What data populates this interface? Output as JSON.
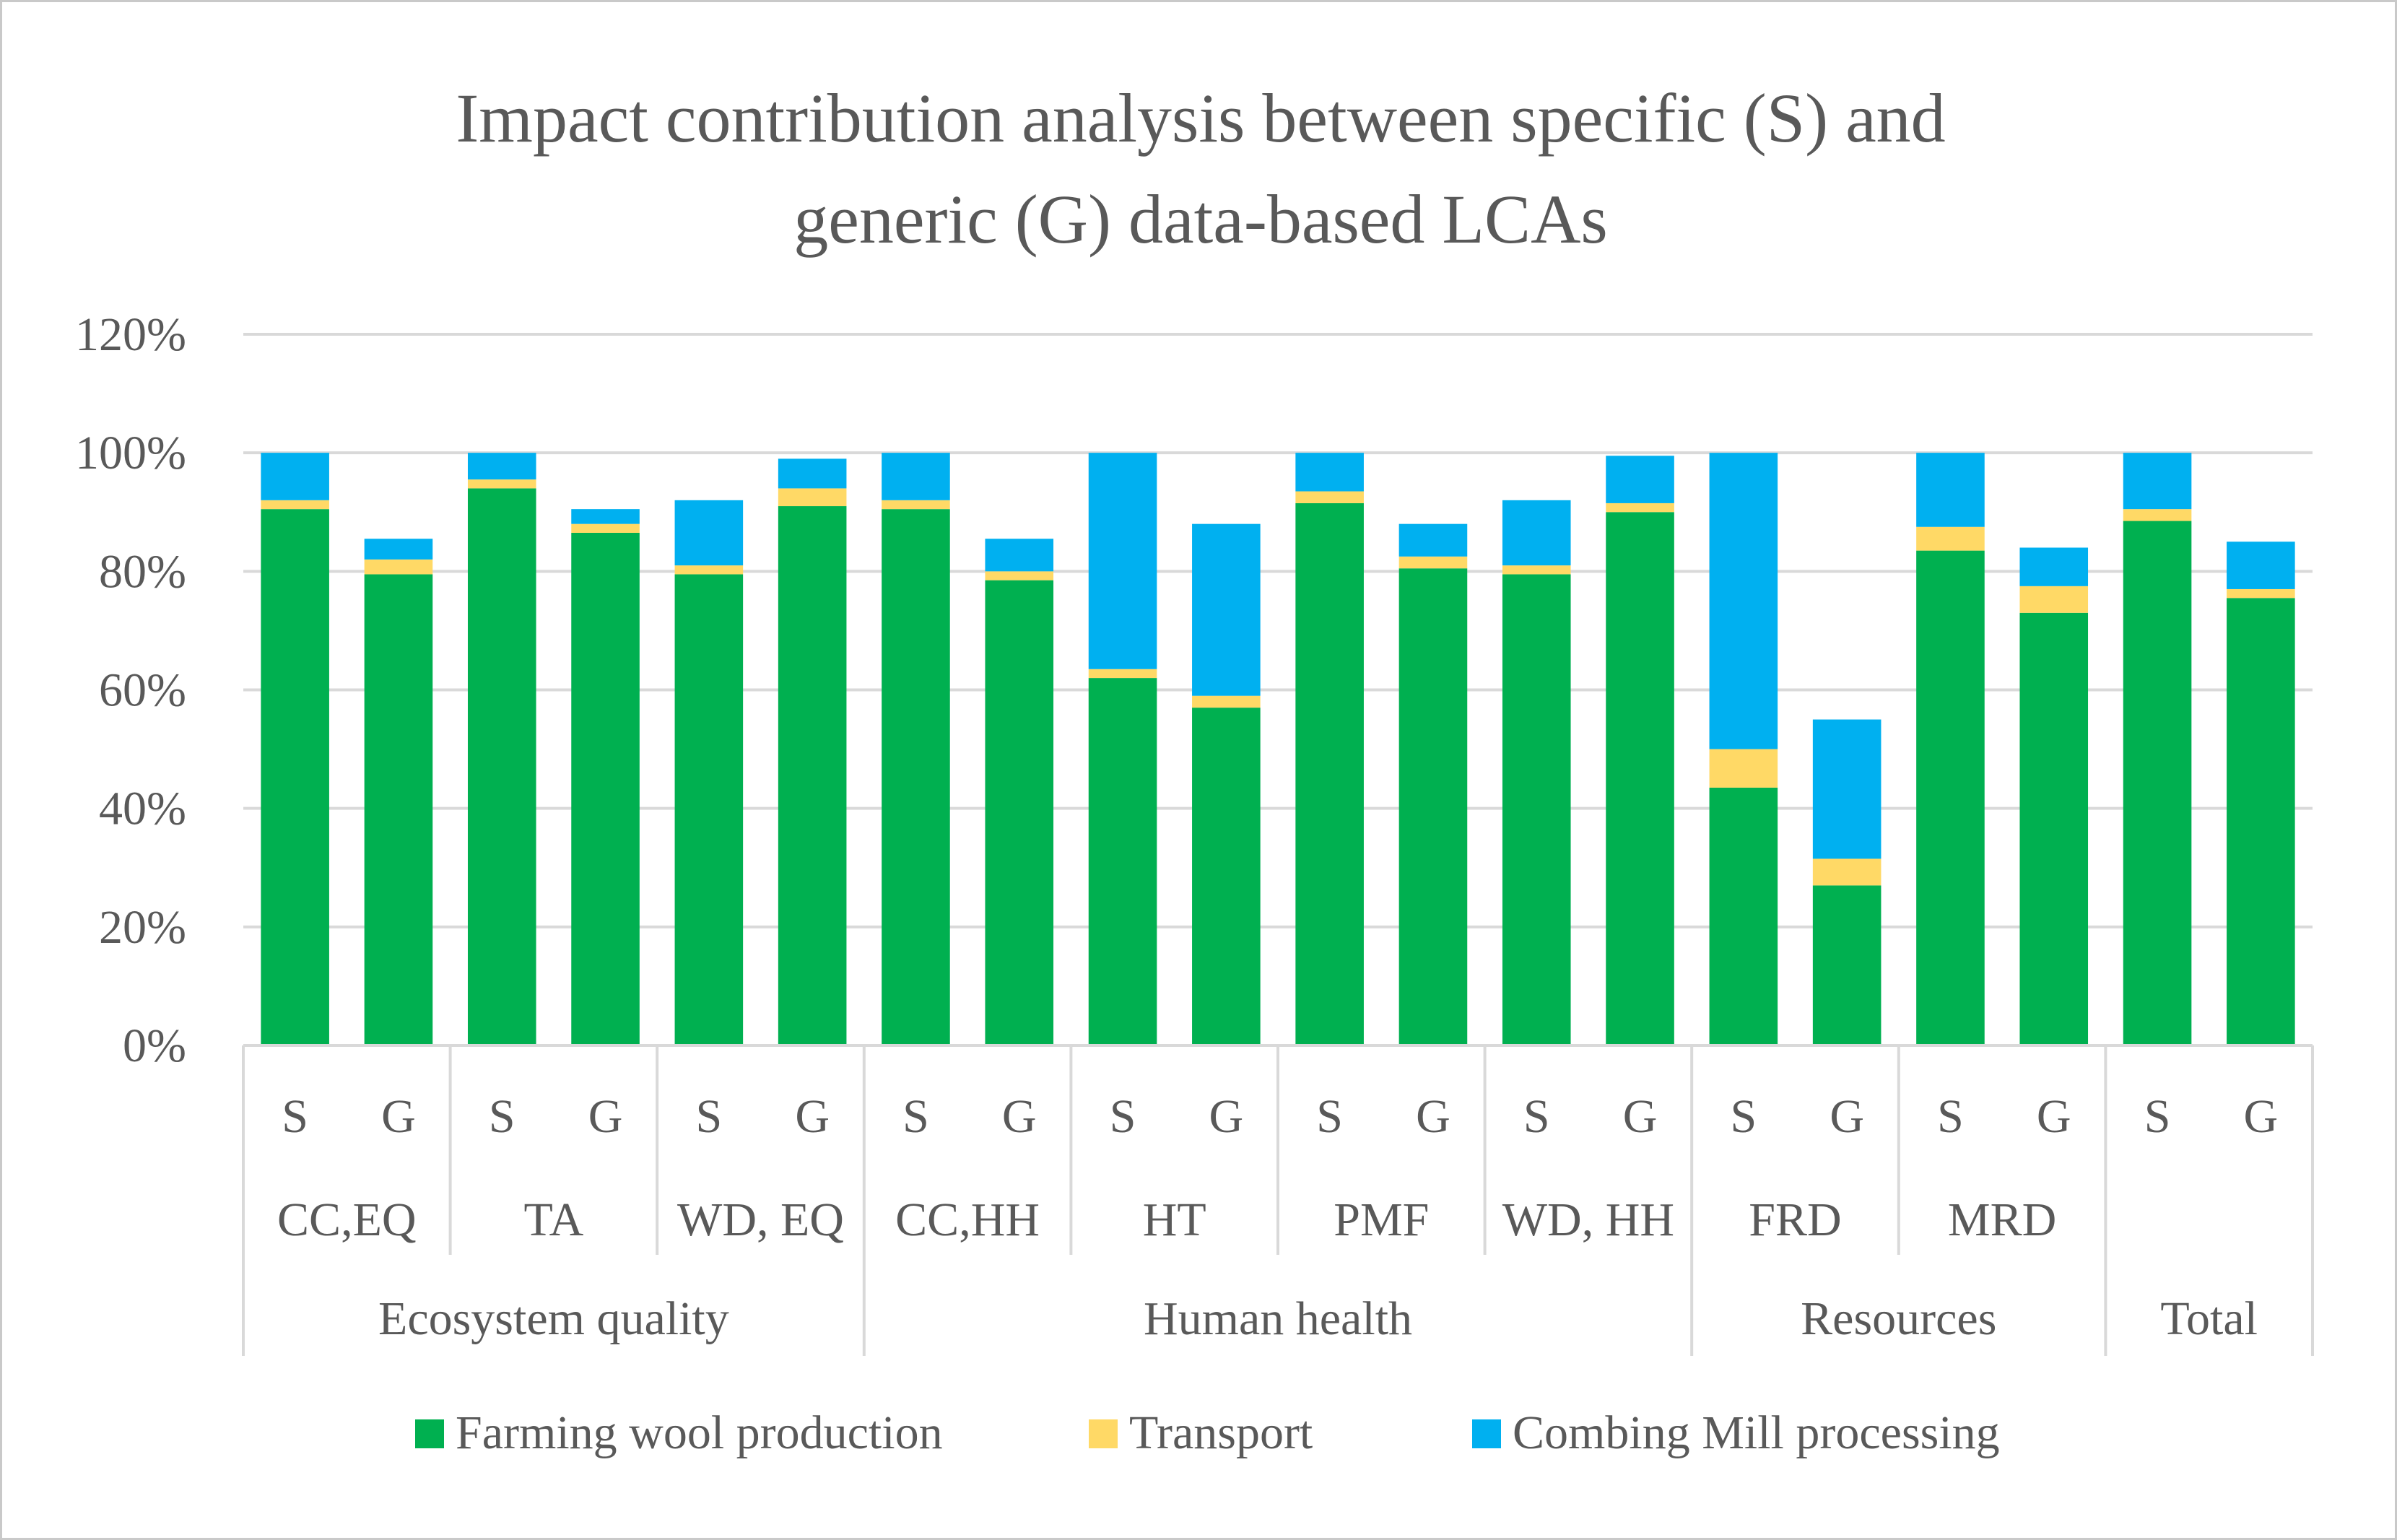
{
  "chart_data": {
    "type": "bar",
    "stacked": true,
    "title": "Impact contribution analysis between specific (S) and generic (G) data-based LCAs",
    "title_lines": [
      "Impact contribution analysis between specific (S) and",
      "generic (G) data-based LCAs"
    ],
    "xlabel": "",
    "ylabel": "",
    "ylim": [
      0,
      120
    ],
    "y_ticks": [
      "0%",
      "20%",
      "40%",
      "60%",
      "80%",
      "100%",
      "120%"
    ],
    "grid": true,
    "legend_position": "bottom",
    "groups": [
      {
        "name": "Ecosystem quality",
        "subgroups": [
          "CC,EQ",
          "TA",
          "WD, EQ"
        ]
      },
      {
        "name": "Human health",
        "subgroups": [
          "CC,HH",
          "HT",
          "PMF",
          "WD, HH"
        ]
      },
      {
        "name": "Resources",
        "subgroups": [
          "FRD",
          "MRD"
        ]
      },
      {
        "name": "Total",
        "subgroups": [
          ""
        ]
      }
    ],
    "categories": [
      "CC,EQ S",
      "CC,EQ G",
      "TA S",
      "TA G",
      "WD, EQ S",
      "WD, EQ G",
      "CC,HH S",
      "CC,HH G",
      "HT S",
      "HT G",
      "PMF S",
      "PMF G",
      "WD, HH S",
      "WD, HH G",
      "FRD S",
      "FRD G",
      "MRD S",
      "MRD G",
      "Total S",
      "Total G"
    ],
    "bar_labels": [
      "S",
      "G",
      "S",
      "G",
      "S",
      "G",
      "S",
      "G",
      "S",
      "G",
      "S",
      "G",
      "S",
      "G",
      "S",
      "G",
      "S",
      "G",
      "S",
      "G"
    ],
    "series": [
      {
        "name": "Farming wool production",
        "color": "#00b050",
        "values": [
          90.5,
          79.5,
          94,
          86.5,
          79.5,
          91,
          90.5,
          78.5,
          62,
          57,
          91.5,
          80.5,
          79.5,
          90,
          43.5,
          27,
          83.5,
          73,
          88.5,
          75.5
        ]
      },
      {
        "name": "Transport",
        "color": "#ffd966",
        "values": [
          1.5,
          2.5,
          1.5,
          1.5,
          1.5,
          3,
          1.5,
          1.5,
          1.5,
          2,
          2,
          2,
          1.5,
          1.5,
          6.5,
          4.5,
          4,
          4.5,
          2,
          1.5
        ]
      },
      {
        "name": "Combing Mill processing",
        "color": "#00b0f0",
        "values": [
          8,
          3.5,
          4.5,
          2.5,
          11,
          5,
          8,
          5.5,
          36.5,
          29,
          6.5,
          5.5,
          11,
          8,
          50,
          23.5,
          12.5,
          6.5,
          9.5,
          8
        ]
      }
    ]
  }
}
